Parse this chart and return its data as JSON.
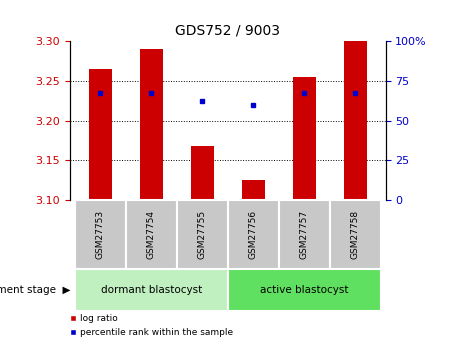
{
  "title": "GDS752 / 9003",
  "samples": [
    "GSM27753",
    "GSM27754",
    "GSM27755",
    "GSM27756",
    "GSM27757",
    "GSM27758"
  ],
  "bar_values": [
    3.265,
    3.29,
    3.168,
    3.125,
    3.255,
    3.3
  ],
  "bar_base": 3.1,
  "blue_dot_values": [
    3.235,
    3.235,
    3.225,
    3.22,
    3.235,
    3.235
  ],
  "ylim_left": [
    3.1,
    3.3
  ],
  "ylim_right": [
    0,
    100
  ],
  "yticks_left": [
    3.1,
    3.15,
    3.2,
    3.25,
    3.3
  ],
  "yticks_right": [
    0,
    25,
    50,
    75,
    100
  ],
  "bar_color": "#cc0000",
  "dot_color": "#0000cc",
  "group1_label": "dormant blastocyst",
  "group2_label": "active blastocyst",
  "group1_color": "#c0f0c0",
  "group2_color": "#60e060",
  "group1_indices": [
    0,
    1,
    2
  ],
  "group2_indices": [
    3,
    4,
    5
  ],
  "xlabel_factor": "development stage",
  "legend_bar": "log ratio",
  "legend_dot": "percentile rank within the sample",
  "bar_width": 0.45,
  "bg_color": "#ffffff",
  "tick_label_color_left": "#cc0000",
  "tick_label_color_right": "#0000cc",
  "sample_bg_color": "#c8c8c8"
}
